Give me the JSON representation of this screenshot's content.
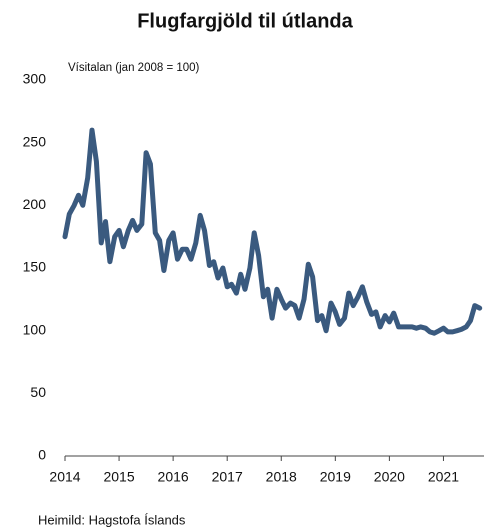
{
  "chart_data": {
    "type": "line",
    "title": "Flugfargjöld til útlanda",
    "subtitle": "Vísitalan (jan 2008 = 100)",
    "source": "Heimild: Hagstofa Íslands",
    "x": [
      2014.0,
      2014.08,
      2014.17,
      2014.25,
      2014.33,
      2014.42,
      2014.5,
      2014.58,
      2014.67,
      2014.75,
      2014.83,
      2014.92,
      2015.0,
      2015.08,
      2015.17,
      2015.25,
      2015.33,
      2015.42,
      2015.5,
      2015.58,
      2015.67,
      2015.75,
      2015.83,
      2015.92,
      2016.0,
      2016.08,
      2016.17,
      2016.25,
      2016.33,
      2016.42,
      2016.5,
      2016.58,
      2016.67,
      2016.75,
      2016.83,
      2016.92,
      2017.0,
      2017.08,
      2017.17,
      2017.25,
      2017.33,
      2017.42,
      2017.5,
      2017.58,
      2017.67,
      2017.75,
      2017.83,
      2017.92,
      2018.0,
      2018.08,
      2018.17,
      2018.25,
      2018.33,
      2018.42,
      2018.5,
      2018.58,
      2018.67,
      2018.75,
      2018.83,
      2018.92,
      2019.0,
      2019.08,
      2019.17,
      2019.25,
      2019.33,
      2019.42,
      2019.5,
      2019.58,
      2019.67,
      2019.75,
      2019.83,
      2019.92,
      2020.0,
      2020.08,
      2020.17,
      2020.25,
      2020.33,
      2020.42,
      2020.5,
      2020.58,
      2020.67,
      2020.75,
      2020.83,
      2020.92,
      2021.0,
      2021.08,
      2021.17,
      2021.25,
      2021.33,
      2021.42,
      2021.5,
      2021.58,
      2021.67
    ],
    "series": [
      {
        "name": "Flugfargjöld",
        "color": "#3a5a7f",
        "values": [
          175,
          193,
          200,
          208,
          200,
          222,
          260,
          235,
          170,
          187,
          155,
          175,
          180,
          167,
          180,
          188,
          180,
          185,
          242,
          233,
          178,
          172,
          148,
          172,
          178,
          157,
          165,
          165,
          157,
          170,
          192,
          180,
          152,
          155,
          142,
          150,
          135,
          137,
          130,
          145,
          133,
          150,
          178,
          160,
          127,
          133,
          110,
          133,
          125,
          118,
          122,
          120,
          110,
          125,
          153,
          143,
          108,
          112,
          100,
          122,
          115,
          105,
          110,
          130,
          120,
          127,
          135,
          123,
          113,
          115,
          103,
          112,
          107,
          114,
          103,
          103,
          103,
          103,
          102,
          103,
          102,
          99,
          98,
          100,
          102,
          99,
          99,
          100,
          101,
          103,
          108,
          120,
          118
        ]
      }
    ],
    "xlim": [
      2014,
      2021.75
    ],
    "xticks": [
      2014,
      2015,
      2016,
      2017,
      2018,
      2019,
      2020,
      2021
    ],
    "ylim": [
      0,
      300
    ],
    "yticks": [
      0,
      50,
      100,
      150,
      200,
      250,
      300
    ],
    "grid": false
  }
}
